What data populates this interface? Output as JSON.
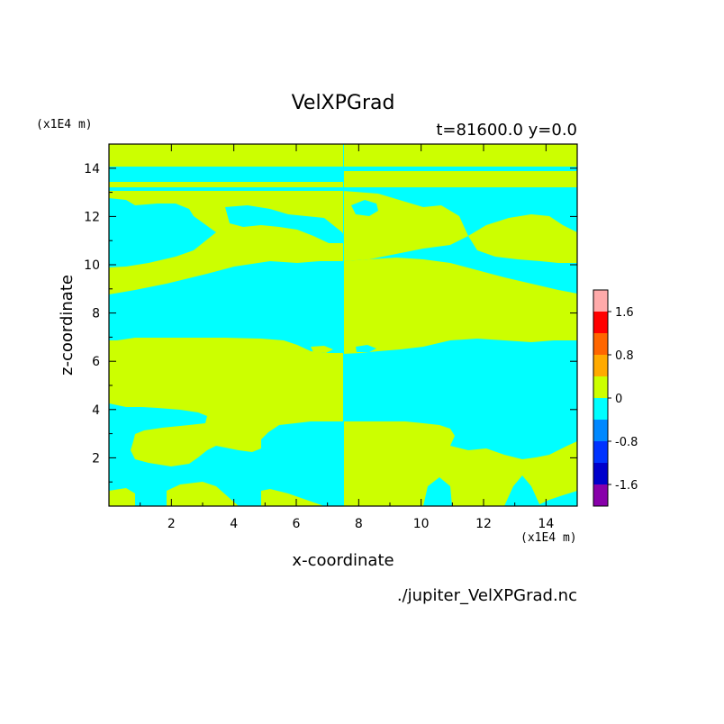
{
  "chart_data": {
    "type": "heatmap",
    "title": "VelXPGrad",
    "subtitle": "t=81600.0 y=0.0",
    "xlabel": "x-coordinate",
    "ylabel": "z-coordinate",
    "x_unit_label": "(x1E4 m)",
    "y_unit_label": "(x1E4 m)",
    "source_file": "./jupiter_VelXPGrad.nc",
    "xlim": [
      0,
      15
    ],
    "ylim": [
      0,
      15
    ],
    "x_ticks": [
      2,
      4,
      6,
      8,
      10,
      12,
      14
    ],
    "x_tick_labels": [
      "2",
      "4",
      "6",
      "8",
      "10",
      "12",
      "14"
    ],
    "y_ticks": [
      2,
      4,
      6,
      8,
      10,
      12,
      14
    ],
    "y_tick_labels": [
      "2",
      "4",
      "6",
      "8",
      "10",
      "12",
      "14"
    ],
    "colorbar": {
      "levels": [
        -2.0,
        -1.6,
        -1.2,
        -0.8,
        -0.4,
        0,
        0.4,
        0.8,
        1.2,
        1.6,
        2.0
      ],
      "colors": [
        "#8800aa",
        "#0000cc",
        "#0033ff",
        "#0088ff",
        "#00ffff",
        "#ccff00",
        "#ffaa00",
        "#ff6600",
        "#ff0000",
        "#ffaaaa"
      ],
      "tick_values": [
        1.6,
        0.8,
        0,
        -0.8,
        -1.6
      ],
      "tick_labels": [
        "1.6",
        "0.8",
        "0",
        "-0.8",
        "-1.6"
      ]
    },
    "colors": {
      "positive": "#ccff00",
      "negative": "#00ffff"
    }
  }
}
